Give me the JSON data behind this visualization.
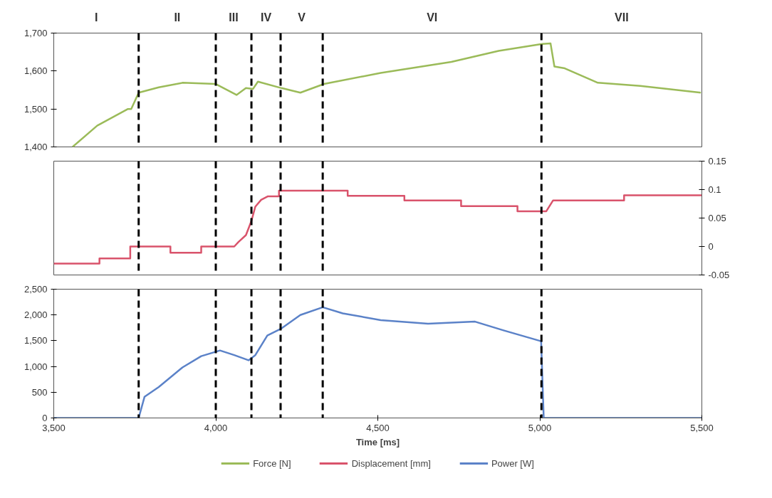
{
  "chart_data": [
    {
      "type": "line",
      "xlim": [
        3500,
        5500
      ],
      "ylim": [
        1400,
        1700
      ],
      "yticks": [
        {
          "value": 1400,
          "label": "1,400"
        },
        {
          "value": 1500,
          "label": "1,500"
        },
        {
          "value": 1600,
          "label": "1,600"
        },
        {
          "value": 1700,
          "label": "1,700"
        }
      ],
      "tick_labels": "y",
      "grid": false,
      "legend": "bottom",
      "series": [
        {
          "name": "Force [N]",
          "color": "#9bbb59",
          "x": [
            3558,
            3634,
            3729,
            3739,
            3762,
            3824,
            3897,
            3999,
            4064,
            4093,
            4115,
            4130,
            4203,
            4261,
            4334,
            4509,
            4727,
            4873,
            5004,
            5033,
            5045,
            5077,
            5179,
            5310,
            5497
          ],
          "values": [
            1400,
            1456,
            1500,
            1500,
            1543,
            1557,
            1569,
            1566,
            1537,
            1555,
            1553,
            1572,
            1555,
            1543,
            1566,
            1595,
            1624,
            1653,
            1671,
            1673,
            1612,
            1607,
            1569,
            1561,
            1543
          ]
        }
      ],
      "annotations": [
        "I",
        "II",
        "III",
        "IV",
        "V",
        "VI",
        "VII"
      ],
      "ref_lines": [
        {
          "axis": "x",
          "value": 3762,
          "color": "#000000",
          "line_style": "dashed"
        },
        {
          "axis": "x",
          "value": 4000,
          "color": "#000000",
          "line_style": "dashed"
        },
        {
          "axis": "x",
          "value": 4110,
          "color": "#000000",
          "line_style": "dashed"
        },
        {
          "axis": "x",
          "value": 4200,
          "color": "#000000",
          "line_style": "dashed"
        },
        {
          "axis": "x",
          "value": 4330,
          "color": "#000000",
          "line_style": "dashed"
        },
        {
          "axis": "x",
          "value": 5005,
          "color": "#000000",
          "line_style": "dashed"
        }
      ]
    },
    {
      "type": "line",
      "xlim": [
        3500,
        5500
      ],
      "y2lim": [
        -0.05,
        0.15
      ],
      "y2ticks": [
        -0.05,
        0,
        0.05,
        0.1,
        0.15
      ],
      "tick_labels": "y2",
      "grid": false,
      "legend": "bottom",
      "series": [
        {
          "name": "Displacement [mm]",
          "color": "#d9536b",
          "axis": "y2",
          "x": [
            3500,
            3641,
            3641,
            3736,
            3736,
            3860,
            3860,
            3955,
            3955,
            4057,
            4070,
            4093,
            4110,
            4122,
            4140,
            4160,
            4195,
            4195,
            4407,
            4407,
            4582,
            4582,
            4757,
            4757,
            4931,
            4931,
            5020,
            5041,
            5260,
            5260,
            5500
          ],
          "values": [
            -0.03,
            -0.03,
            -0.021,
            -0.021,
            0,
            0,
            -0.011,
            -0.011,
            0,
            0,
            0.008,
            0.02,
            0.045,
            0.07,
            0.082,
            0.088,
            0.088,
            0.098,
            0.098,
            0.089,
            0.089,
            0.081,
            0.081,
            0.071,
            0.071,
            0.062,
            0.062,
            0.081,
            0.081,
            0.09,
            0.09
          ]
        }
      ],
      "ref_lines": [
        {
          "axis": "x",
          "value": 3762,
          "color": "#000000",
          "line_style": "dashed"
        },
        {
          "axis": "x",
          "value": 4000,
          "color": "#000000",
          "line_style": "dashed"
        },
        {
          "axis": "x",
          "value": 4110,
          "color": "#000000",
          "line_style": "dashed"
        },
        {
          "axis": "x",
          "value": 4200,
          "color": "#000000",
          "line_style": "dashed"
        },
        {
          "axis": "x",
          "value": 4330,
          "color": "#000000",
          "line_style": "dashed"
        },
        {
          "axis": "x",
          "value": 5005,
          "color": "#000000",
          "line_style": "dashed"
        }
      ]
    },
    {
      "type": "line",
      "xlabel": "Time [ms]",
      "xlim": [
        3500,
        5500
      ],
      "xticks": [
        {
          "value": 3500,
          "label": "3,500"
        },
        {
          "value": 4000,
          "label": "4,000"
        },
        {
          "value": 4500,
          "label": "4,500"
        },
        {
          "value": 5000,
          "label": "5,000"
        },
        {
          "value": 5500,
          "label": "5,500"
        }
      ],
      "ylim": [
        0,
        2500
      ],
      "yticks": [
        0,
        500,
        {
          "value": 1000,
          "label": "1,000"
        },
        {
          "value": 1500,
          "label": "1,500"
        },
        {
          "value": 2000,
          "label": "2,000"
        },
        {
          "value": 2500,
          "label": "2,500"
        }
      ],
      "grid": false,
      "legend": "bottom",
      "series": [
        {
          "name": "Power [W]",
          "color": "#5b82c8",
          "x": [
            3500,
            3762,
            3780,
            3824,
            3897,
            3955,
            4013,
            4057,
            4101,
            4122,
            4159,
            4203,
            4261,
            4330,
            4392,
            4509,
            4655,
            4800,
            4888,
            5004,
            5012,
            5500
          ],
          "values": [
            0,
            0,
            410,
            600,
            980,
            1200,
            1310,
            1220,
            1120,
            1220,
            1600,
            1740,
            2000,
            2150,
            2030,
            1900,
            1830,
            1870,
            1700,
            1490,
            0,
            0
          ]
        }
      ],
      "ref_lines": [
        {
          "axis": "x",
          "value": 3762,
          "color": "#000000",
          "line_style": "dashed"
        },
        {
          "axis": "x",
          "value": 4000,
          "color": "#000000",
          "line_style": "dashed"
        },
        {
          "axis": "x",
          "value": 4110,
          "color": "#000000",
          "line_style": "dashed"
        },
        {
          "axis": "x",
          "value": 4200,
          "color": "#000000",
          "line_style": "dashed"
        },
        {
          "axis": "x",
          "value": 4330,
          "color": "#000000",
          "line_style": "dashed"
        },
        {
          "axis": "x",
          "value": 5005,
          "color": "#000000",
          "line_style": "dashed"
        }
      ]
    }
  ]
}
